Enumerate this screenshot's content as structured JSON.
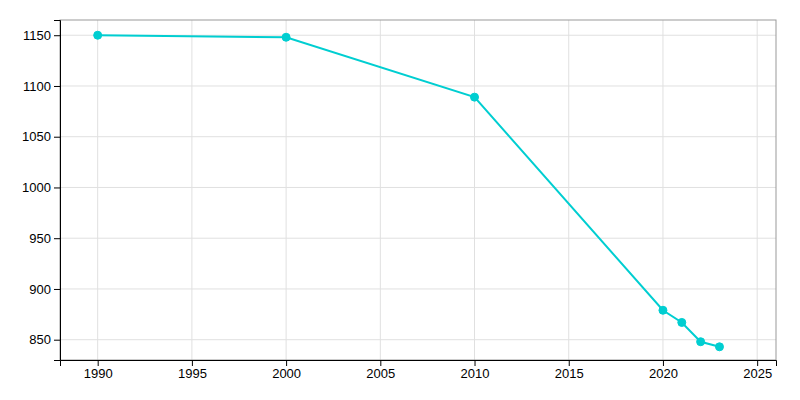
{
  "chart_data": {
    "type": "line",
    "x": [
      1990,
      2000,
      2010,
      2020,
      2021,
      2022,
      2023
    ],
    "values": [
      1150,
      1148,
      1089,
      879,
      867,
      848,
      843
    ],
    "color": "#00CED1",
    "marker": "circle",
    "xlim": [
      1988,
      2026
    ],
    "ylim": [
      830,
      1165
    ],
    "xticks": [
      1990,
      1995,
      2000,
      2005,
      2010,
      2015,
      2020,
      2025
    ],
    "yticks": [
      850,
      900,
      950,
      1000,
      1050,
      1100,
      1150
    ],
    "grid": true
  }
}
